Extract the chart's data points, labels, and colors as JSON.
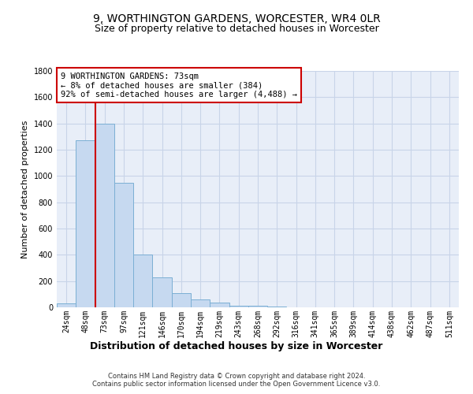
{
  "title": "9, WORTHINGTON GARDENS, WORCESTER, WR4 0LR",
  "subtitle": "Size of property relative to detached houses in Worcester",
  "xlabel": "Distribution of detached houses by size in Worcester",
  "ylabel": "Number of detached properties",
  "categories": [
    "24sqm",
    "48sqm",
    "73sqm",
    "97sqm",
    "121sqm",
    "146sqm",
    "170sqm",
    "194sqm",
    "219sqm",
    "243sqm",
    "268sqm",
    "292sqm",
    "316sqm",
    "341sqm",
    "365sqm",
    "389sqm",
    "414sqm",
    "438sqm",
    "462sqm",
    "487sqm",
    "511sqm"
  ],
  "values": [
    30,
    1270,
    1400,
    950,
    405,
    230,
    110,
    60,
    35,
    15,
    10,
    5,
    3,
    2,
    1,
    0,
    0,
    0,
    0,
    0,
    0
  ],
  "bar_color": "#c6d9f0",
  "bar_edge_color": "#7bafd4",
  "vline_index": 2,
  "vline_color": "#cc0000",
  "annotation_line1": "9 WORTHINGTON GARDENS: 73sqm",
  "annotation_line2": "← 8% of detached houses are smaller (384)",
  "annotation_line3": "92% of semi-detached houses are larger (4,488) →",
  "annotation_box_color": "#ffffff",
  "annotation_box_edge_color": "#cc0000",
  "ylim": [
    0,
    1800
  ],
  "yticks": [
    0,
    200,
    400,
    600,
    800,
    1000,
    1200,
    1400,
    1600,
    1800
  ],
  "grid_color": "#c8d4e8",
  "background_color": "#e8eef8",
  "footer_line1": "Contains HM Land Registry data © Crown copyright and database right 2024.",
  "footer_line2": "Contains public sector information licensed under the Open Government Licence v3.0.",
  "title_fontsize": 10,
  "subtitle_fontsize": 9,
  "tick_fontsize": 7,
  "ylabel_fontsize": 8,
  "xlabel_fontsize": 9,
  "annotation_fontsize": 7.5,
  "footer_fontsize": 6
}
